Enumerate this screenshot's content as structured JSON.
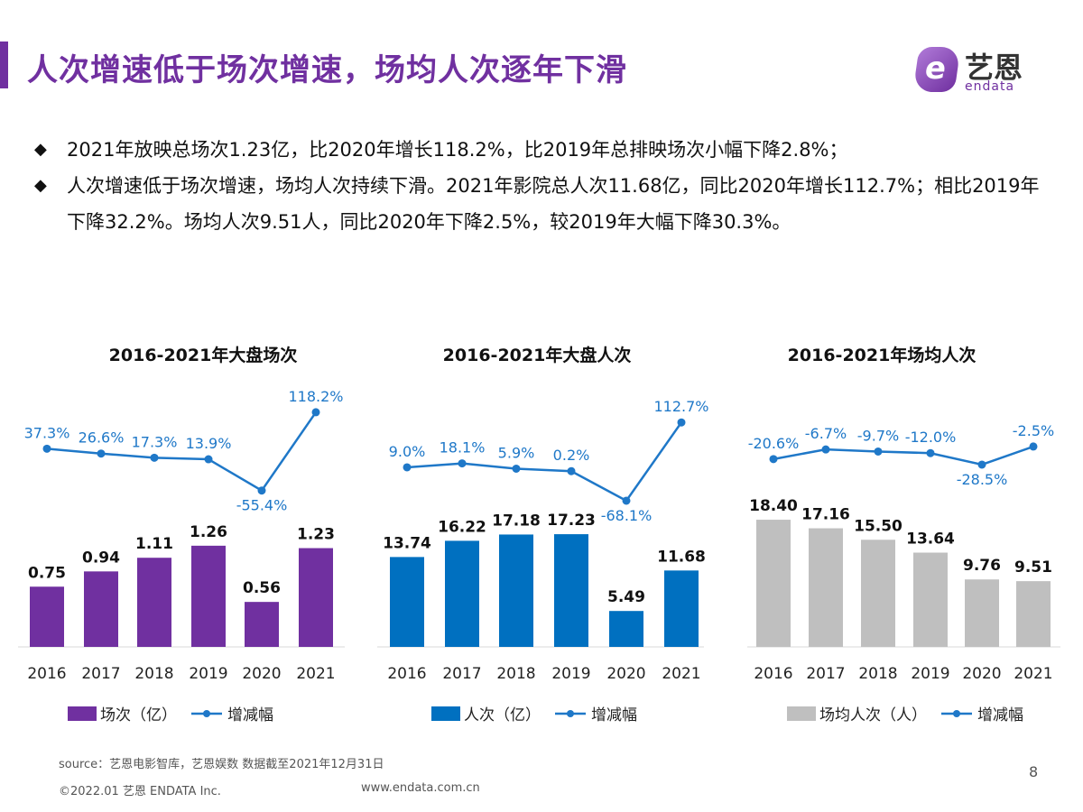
{
  "header": {
    "title": "人次增速低于场次增速，场均人次逐年下滑",
    "logo_cn": "艺恩",
    "logo_en": "endata"
  },
  "bullets": [
    "2021年放映总场次1.23亿，比2020年增长118.2%，比2019年总排映场次小幅下降2.8%；",
    "人次增速低于场次增速，场均人次持续下滑。2021年影院总人次11.68亿，同比2020年增长112.7%；相比2019年下降32.2%。场均人次9.51人，同比2020年下降2.5%，较2019年大幅下降30.3%。"
  ],
  "bullet_icon": "diamond-bullet-icon",
  "chart_data": [
    {
      "type": "bar+line",
      "title": "2016-2021年大盘场次",
      "categories": [
        "2016",
        "2017",
        "2018",
        "2019",
        "2020",
        "2021"
      ],
      "series": [
        {
          "name": "场次（亿）",
          "type": "bar",
          "color": "#7030a0",
          "values": [
            0.75,
            0.94,
            1.11,
            1.26,
            0.56,
            1.23
          ]
        },
        {
          "name": "增减幅",
          "type": "line",
          "color": "#1f78c8",
          "values": [
            37.3,
            26.6,
            17.3,
            13.9,
            -55.4,
            118.2
          ],
          "labels": [
            "37.3%",
            "26.6%",
            "17.3%",
            "13.9%",
            "-55.4%",
            "118.2%"
          ]
        }
      ]
    },
    {
      "type": "bar+line",
      "title": "2016-2021年大盘人次",
      "categories": [
        "2016",
        "2017",
        "2018",
        "2019",
        "2020",
        "2021"
      ],
      "series": [
        {
          "name": "人次（亿）",
          "type": "bar",
          "color": "#0070c0",
          "values": [
            13.74,
            16.22,
            17.18,
            17.23,
            5.49,
            11.68
          ]
        },
        {
          "name": "增减幅",
          "type": "line",
          "color": "#1f78c8",
          "values": [
            9.0,
            18.1,
            5.9,
            0.2,
            -68.1,
            112.7
          ],
          "labels": [
            "9.0%",
            "18.1%",
            "5.9%",
            "0.2%",
            "-68.1%",
            "112.7%"
          ]
        }
      ]
    },
    {
      "type": "bar+line",
      "title": "2016-2021年场均人次",
      "categories": [
        "2016",
        "2017",
        "2018",
        "2019",
        "2020",
        "2021"
      ],
      "series": [
        {
          "name": "场均人次（人）",
          "type": "bar",
          "color": "#bfbfbf",
          "values": [
            18.4,
            17.16,
            15.5,
            13.64,
            9.76,
            9.51
          ]
        },
        {
          "name": "增减幅",
          "type": "line",
          "color": "#1f78c8",
          "values": [
            -20.6,
            -6.7,
            -9.7,
            -12.0,
            -28.5,
            -2.5
          ],
          "labels": [
            "-20.6%",
            "-6.7%",
            "-9.7%",
            "-12.0%",
            "-28.5%",
            "-2.5%"
          ]
        }
      ]
    }
  ],
  "footer": {
    "source": "source：艺恩电影智库，艺恩娱数    数据截至2021年12月31日",
    "copyright": "©2022.01 艺恩 ENDATA Inc.",
    "url": "www.endata.com.cn",
    "page": "8"
  }
}
